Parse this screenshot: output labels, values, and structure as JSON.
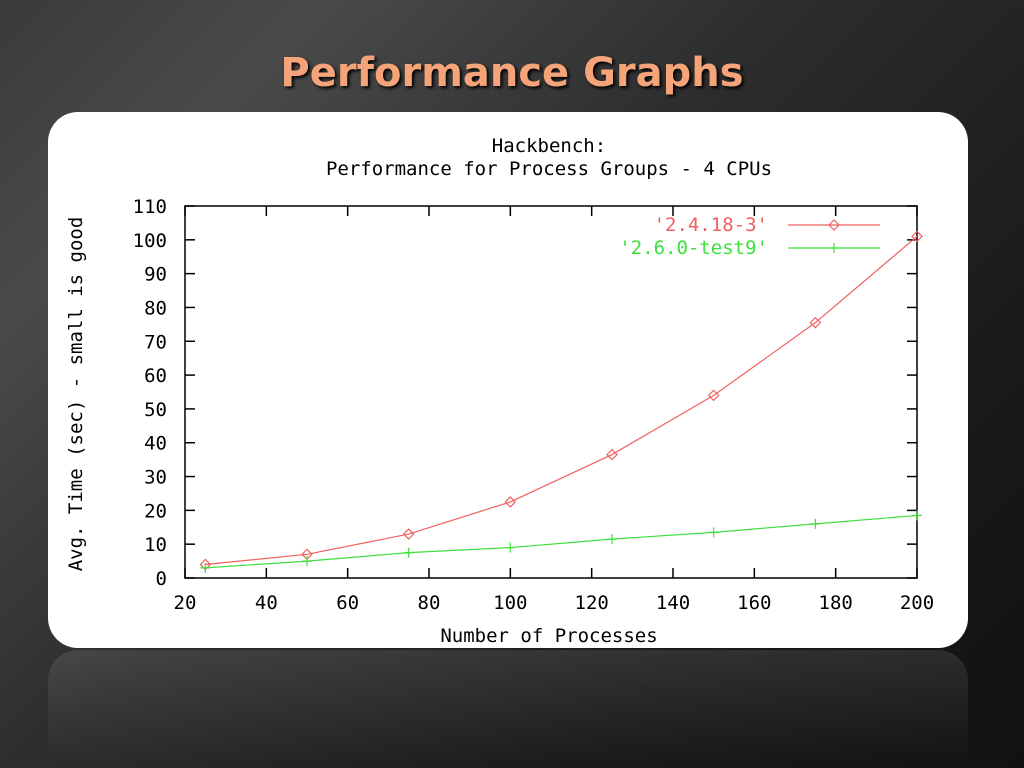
{
  "slide": {
    "title": "Performance Graphs"
  },
  "colors": {
    "title": "#f5a47a",
    "series_red": "#f06060",
    "series_green": "#3ee03e",
    "axis": "#000000"
  },
  "chart_data": {
    "type": "line",
    "title": "Hackbench:",
    "subtitle": "Performance for Process Groups - 4 CPUs",
    "xlabel": "Number of Processes",
    "ylabel": "Avg. Time (sec) - small is good",
    "xlim": [
      20,
      200
    ],
    "ylim": [
      0,
      110
    ],
    "xticks": [
      20,
      40,
      60,
      80,
      100,
      120,
      140,
      160,
      180,
      200
    ],
    "yticks": [
      0,
      10,
      20,
      30,
      40,
      50,
      60,
      70,
      80,
      90,
      100,
      110
    ],
    "grid": false,
    "legend_position": "top-right",
    "series": [
      {
        "name": "'2.4.18-3'",
        "color": "#f06060",
        "marker": "diamond",
        "x": [
          25,
          50,
          75,
          100,
          125,
          150,
          175,
          200
        ],
        "y": [
          4,
          7,
          13,
          22.5,
          36.5,
          54,
          75.5,
          101
        ]
      },
      {
        "name": "'2.6.0-test9'",
        "color": "#3ee03e",
        "marker": "plus",
        "x": [
          25,
          50,
          75,
          100,
          125,
          150,
          175,
          200
        ],
        "y": [
          3,
          5,
          7.5,
          9,
          11.5,
          13.5,
          16,
          18.5
        ]
      }
    ]
  }
}
